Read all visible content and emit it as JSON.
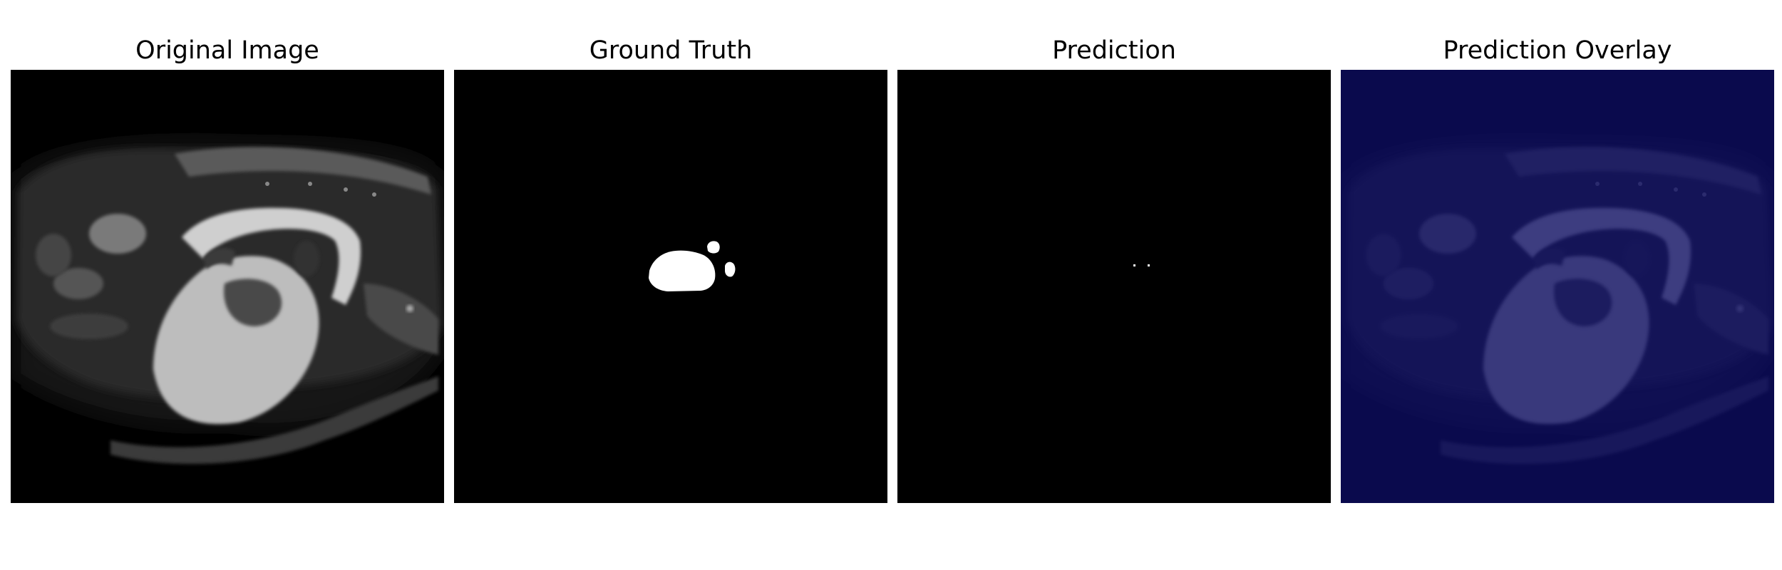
{
  "figure": {
    "panels": [
      {
        "title": "Original Image"
      },
      {
        "title": "Ground Truth"
      },
      {
        "title": "Prediction"
      },
      {
        "title": "Prediction Overlay"
      }
    ]
  },
  "colors": {
    "background": "#ffffff",
    "mask_foreground": "#ffffff",
    "mask_background": "#000000",
    "overlay_tint": "#0a0a5a"
  }
}
